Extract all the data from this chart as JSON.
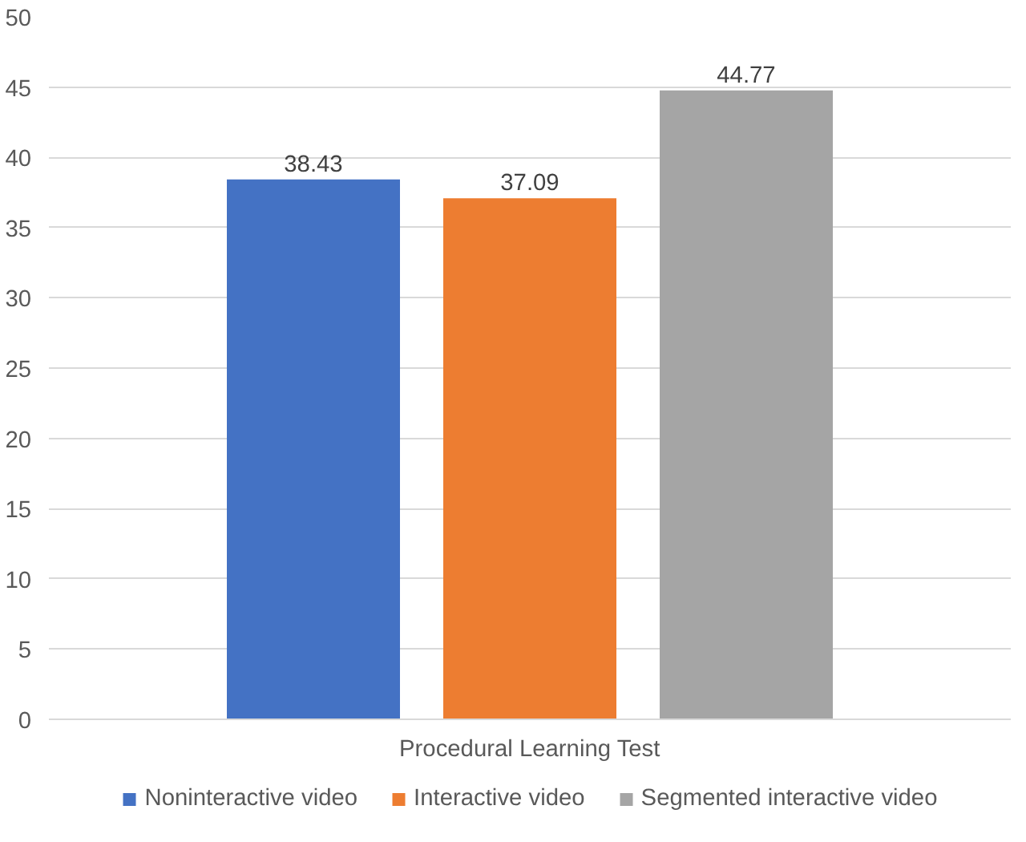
{
  "chart_data": {
    "type": "bar",
    "categories": [
      "Procedural Learning Test"
    ],
    "series": [
      {
        "name": "Noninteractive video",
        "color": "#4472c4",
        "values": [
          38.43
        ]
      },
      {
        "name": "Interactive video",
        "color": "#ed7d31",
        "values": [
          37.09
        ]
      },
      {
        "name": "Segmented interactive video",
        "color": "#a5a5a5",
        "values": [
          44.77
        ]
      }
    ],
    "ylim": [
      0,
      50
    ],
    "yticks": [
      0,
      5,
      10,
      15,
      20,
      25,
      30,
      35,
      40,
      45,
      50
    ],
    "grid": "y",
    "legend": "bottom",
    "data_labels": true
  }
}
